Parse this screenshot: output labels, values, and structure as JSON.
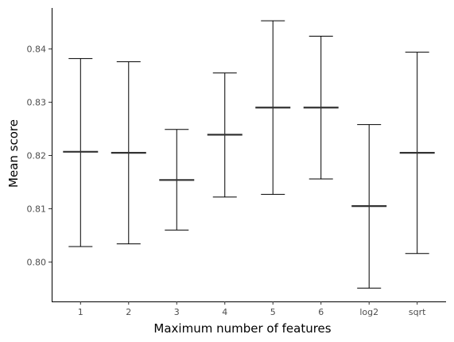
{
  "chart_data": {
    "type": "errorbar",
    "xlabel": "Maximum number of features",
    "ylabel": "Mean score",
    "categories": [
      "1",
      "2",
      "3",
      "4",
      "5",
      "6",
      "log2",
      "sqrt"
    ],
    "series": [
      {
        "mean": [
          0.8207,
          0.8205,
          0.8154,
          0.8239,
          0.829,
          0.829,
          0.8105,
          0.8205
        ],
        "lower": [
          0.8029,
          0.8034,
          0.806,
          0.8122,
          0.8127,
          0.8156,
          0.7951,
          0.8016
        ],
        "upper": [
          0.8382,
          0.8376,
          0.8249,
          0.8355,
          0.8453,
          0.8424,
          0.8258,
          0.8394
        ]
      }
    ],
    "yticks": [
      0.8,
      0.81,
      0.82,
      0.83,
      0.84
    ],
    "ytick_labels": [
      "0.80",
      "0.81",
      "0.82",
      "0.83",
      "0.84"
    ],
    "ylim": [
      0.7926,
      0.8477
    ],
    "grid": false,
    "colors": {
      "mean_line": "#333333",
      "error_bar": "#000000",
      "axis": "#000000"
    }
  }
}
